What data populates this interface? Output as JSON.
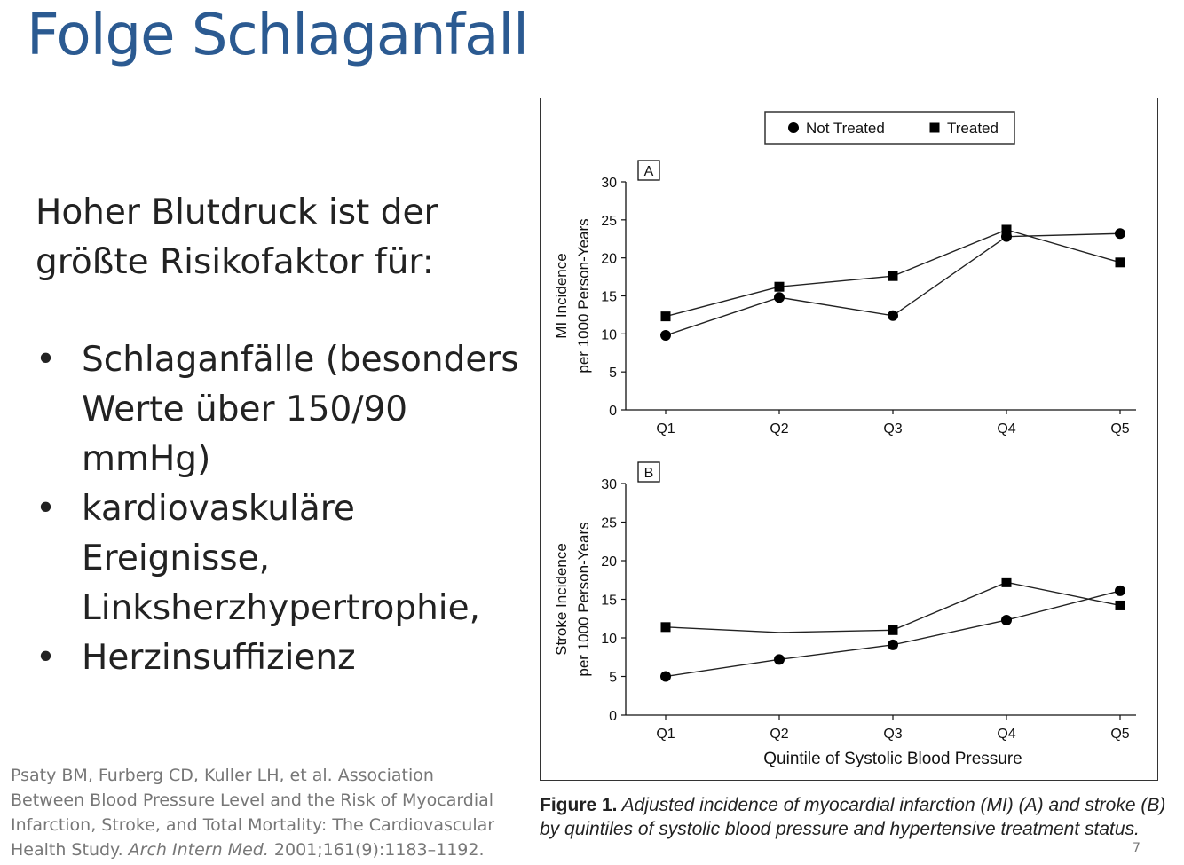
{
  "slide": {
    "title": "Folge Schlaganfall",
    "intro_line1": "Hoher Blutdruck ist der",
    "intro_line2": "größte Risikofaktor für:",
    "bullet_char": "•",
    "bullets": [
      {
        "lines": [
          "Schlaganfälle (besonders",
          "Werte über 150/90",
          "mmHg)"
        ]
      },
      {
        "lines": [
          "kardiovaskuläre",
          "Ereignisse,",
          "Linksherzhypertrophie,"
        ]
      },
      {
        "lines": [
          "Herzinsuffizienz"
        ]
      }
    ],
    "citation_part1": "Psaty BM, Furberg CD, Kuller LH, et al. Association Between Blood Pressure Level and the Risk of Myocardial Infarction, Stroke, and Total Mortality: The Cardiovascular Health Study.",
    "citation_journal": "Arch Intern Med.",
    "citation_part2": "2001;161(9):1183–1192.",
    "page_mark": "7"
  },
  "figure": {
    "caption_label": "Figure 1.",
    "caption_text": "Adjusted incidence of myocardial infarction (MI) (A) and stroke (B) by quintiles of systolic blood pressure and hypertensive treatment status."
  },
  "chart_data": [
    {
      "type": "line",
      "panel_label": "A",
      "categories": [
        "Q1",
        "Q2",
        "Q3",
        "Q4",
        "Q5"
      ],
      "series": [
        {
          "name": "Not Treated",
          "marker": "circle",
          "values": [
            9.8,
            14.8,
            12.4,
            22.8,
            23.2
          ]
        },
        {
          "name": "Treated",
          "marker": "square",
          "values": [
            12.3,
            16.2,
            17.6,
            23.7,
            19.4
          ]
        }
      ],
      "ylabel_line1": "MI Incidence",
      "ylabel_line2": "per 1000 Person-Years",
      "xlabel": "",
      "ylim": [
        0,
        30
      ],
      "yticks": [
        0,
        5,
        10,
        15,
        20,
        25,
        30
      ]
    },
    {
      "type": "line",
      "panel_label": "B",
      "categories": [
        "Q1",
        "Q2",
        "Q3",
        "Q4",
        "Q5"
      ],
      "series": [
        {
          "name": "Not Treated",
          "marker": "circle",
          "values": [
            5.0,
            7.2,
            9.1,
            12.3,
            16.1
          ]
        },
        {
          "name": "Treated",
          "marker": "square",
          "values": [
            11.4,
            10.7,
            11.0,
            17.2,
            14.2
          ],
          "marker_shown": [
            true,
            false,
            true,
            true,
            true
          ]
        }
      ],
      "ylabel_line1": "Stroke Incidence",
      "ylabel_line2": "per 1000 Person-Years",
      "xlabel": "Quintile of Systolic Blood Pressure",
      "ylim": [
        0,
        30
      ],
      "yticks": [
        0,
        5,
        10,
        15,
        20,
        25,
        30
      ]
    }
  ],
  "legend": {
    "placement": "top-center",
    "items": [
      {
        "label": "Not Treated",
        "marker": "circle"
      },
      {
        "label": "Treated",
        "marker": "square"
      }
    ]
  }
}
